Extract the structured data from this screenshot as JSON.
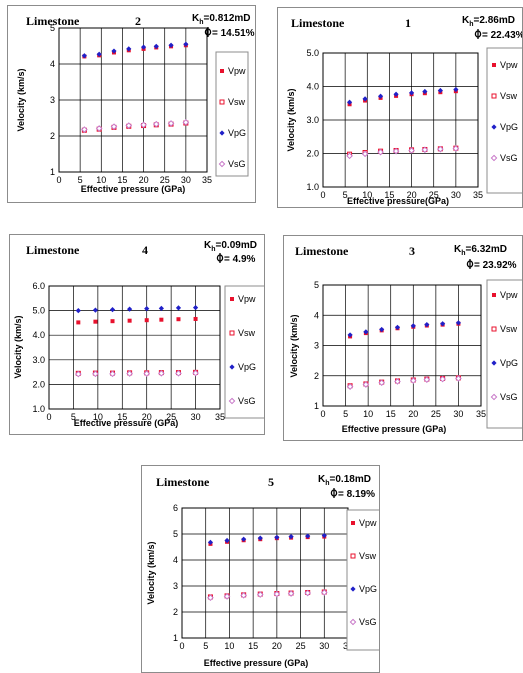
{
  "colors": {
    "Vpw": "#e8112d",
    "Vsw": "#e8112d",
    "VpG": "#2020c8",
    "VsG": "#c878c8"
  },
  "chart_data": [
    {
      "type": "scatter",
      "title": "Limestone",
      "sample_id": "2",
      "permeability": "K",
      "permeability_sub": "h",
      "permeability_value": "=0.812mD",
      "porosity": "= 14.51%",
      "xlabel": "Effective pressure (GPa)",
      "ylabel": "Velocity (km/s)",
      "xlim": [
        0,
        35
      ],
      "ylim": [
        1,
        5
      ],
      "xticks": [
        "0",
        "5",
        "10",
        "15",
        "20",
        "25",
        "30",
        "35"
      ],
      "yticks": [
        "1",
        "2",
        "3",
        "4",
        "5"
      ],
      "grid": true,
      "legend_position": "right",
      "x": [
        6,
        9.5,
        13,
        16.5,
        20,
        23,
        26.5,
        30
      ],
      "series": [
        {
          "name": "Vpw",
          "values": [
            4.21,
            4.24,
            4.32,
            4.38,
            4.42,
            4.46,
            4.49,
            4.52
          ]
        },
        {
          "name": "Vsw",
          "values": [
            2.16,
            2.19,
            2.24,
            2.27,
            2.29,
            2.31,
            2.33,
            2.36
          ]
        },
        {
          "name": "VpG",
          "values": [
            4.23,
            4.27,
            4.36,
            4.42,
            4.47,
            4.49,
            4.52,
            4.55
          ]
        },
        {
          "name": "VsG",
          "values": [
            2.18,
            2.21,
            2.26,
            2.29,
            2.31,
            2.33,
            2.35,
            2.38
          ]
        }
      ]
    },
    {
      "type": "scatter",
      "title": "Limestone",
      "sample_id": "1",
      "permeability": "K",
      "permeability_sub": "h",
      "permeability_value": "=2.86mD",
      "porosity": "= 22.43%",
      "xlabel": "Effective pressure(GPa)",
      "ylabel": "Velocity (km/s)",
      "xlim": [
        0,
        35
      ],
      "ylim": [
        1,
        5
      ],
      "xticks": [
        "0",
        "5",
        "10",
        "15",
        "20",
        "25",
        "30",
        "35"
      ],
      "yticks": [
        "1.0",
        "2.0",
        "3.0",
        "4.0",
        "5.0"
      ],
      "grid": true,
      "legend_position": "right",
      "x": [
        6,
        9.5,
        13,
        16.5,
        20,
        23,
        26.5,
        30
      ],
      "series": [
        {
          "name": "Vpw",
          "values": [
            3.47,
            3.58,
            3.66,
            3.72,
            3.77,
            3.8,
            3.83,
            3.86
          ]
        },
        {
          "name": "Vsw",
          "values": [
            1.98,
            2.03,
            2.07,
            2.09,
            2.11,
            2.12,
            2.14,
            2.16
          ]
        },
        {
          "name": "VpG",
          "values": [
            3.53,
            3.63,
            3.71,
            3.77,
            3.81,
            3.85,
            3.88,
            3.91
          ]
        },
        {
          "name": "VsG",
          "values": [
            1.93,
            1.99,
            2.04,
            2.07,
            2.09,
            2.11,
            2.13,
            2.15
          ]
        }
      ]
    },
    {
      "type": "scatter",
      "title": "Limestone",
      "sample_id": "4",
      "permeability": "K",
      "permeability_sub": "h",
      "permeability_value": "=0.09mD",
      "porosity": "= 4.9%",
      "xlabel": "Effective pressure (GPa)",
      "ylabel": "Velocity (km/s)",
      "xlim": [
        0,
        35
      ],
      "ylim": [
        1,
        6
      ],
      "xticks": [
        "0",
        "5",
        "10",
        "15",
        "20",
        "25",
        "30",
        "35"
      ],
      "yticks": [
        "1.0",
        "2.0",
        "3.0",
        "4.0",
        "5.0",
        "6.0"
      ],
      "grid": true,
      "legend_position": "right",
      "x": [
        6,
        9.5,
        13,
        16.5,
        20,
        23,
        26.5,
        30
      ],
      "series": [
        {
          "name": "Vpw",
          "values": [
            4.52,
            4.55,
            4.57,
            4.59,
            4.61,
            4.63,
            4.65,
            4.66
          ]
        },
        {
          "name": "Vsw",
          "values": [
            2.45,
            2.46,
            2.46,
            2.47,
            2.47,
            2.48,
            2.48,
            2.49
          ]
        },
        {
          "name": "VpG",
          "values": [
            5.0,
            5.02,
            5.04,
            5.06,
            5.08,
            5.09,
            5.11,
            5.12
          ]
        },
        {
          "name": "VsG",
          "values": [
            2.42,
            2.43,
            2.43,
            2.44,
            2.44,
            2.45,
            2.45,
            2.46
          ]
        }
      ]
    },
    {
      "type": "scatter",
      "title": "Limestone",
      "sample_id": "3",
      "permeability": "K",
      "permeability_sub": "h",
      "permeability_value": "=6.32mD",
      "porosity": "= 23.92%",
      "xlabel": "Effective pressure (GPa)",
      "ylabel": "Velocity (km/s)",
      "xlim": [
        0,
        35
      ],
      "ylim": [
        1,
        5
      ],
      "xticks": [
        "0",
        "5",
        "10",
        "15",
        "20",
        "25",
        "30",
        "35"
      ],
      "yticks": [
        "1",
        "2",
        "3",
        "4",
        "5"
      ],
      "grid": true,
      "legend_position": "right",
      "x": [
        6,
        9.5,
        13,
        16.5,
        20,
        23,
        26.5,
        30
      ],
      "series": [
        {
          "name": "Vpw",
          "values": [
            3.3,
            3.41,
            3.5,
            3.57,
            3.62,
            3.66,
            3.69,
            3.72
          ]
        },
        {
          "name": "Vsw",
          "values": [
            1.67,
            1.73,
            1.79,
            1.83,
            1.86,
            1.89,
            1.91,
            1.93
          ]
        },
        {
          "name": "VpG",
          "values": [
            3.35,
            3.45,
            3.53,
            3.6,
            3.65,
            3.69,
            3.72,
            3.75
          ]
        },
        {
          "name": "VsG",
          "values": [
            1.64,
            1.71,
            1.77,
            1.81,
            1.84,
            1.87,
            1.89,
            1.91
          ]
        }
      ]
    },
    {
      "type": "scatter",
      "title": "Limestone",
      "sample_id": "5",
      "permeability": "K",
      "permeability_sub": "h",
      "permeability_value": "=0.18mD",
      "porosity": "= 8.19%",
      "xlabel": "Effective pressure (GPa)",
      "ylabel": "Velocity (km/s)",
      "xlim": [
        0,
        35
      ],
      "ylim": [
        1,
        6
      ],
      "xticks": [
        "0",
        "5",
        "10",
        "15",
        "20",
        "25",
        "30",
        "35"
      ],
      "yticks": [
        "1",
        "2",
        "3",
        "4",
        "5",
        "6"
      ],
      "grid": true,
      "legend_position": "right",
      "x": [
        6,
        9.5,
        13,
        16.5,
        20,
        23,
        26.5,
        30
      ],
      "series": [
        {
          "name": "Vpw",
          "values": [
            4.62,
            4.7,
            4.76,
            4.8,
            4.84,
            4.86,
            4.88,
            4.9
          ]
        },
        {
          "name": "Vsw",
          "values": [
            2.58,
            2.62,
            2.66,
            2.69,
            2.71,
            2.73,
            2.75,
            2.77
          ]
        },
        {
          "name": "VpG",
          "values": [
            4.68,
            4.75,
            4.8,
            4.84,
            4.87,
            4.9,
            4.92,
            4.94
          ]
        },
        {
          "name": "VsG",
          "values": [
            2.55,
            2.6,
            2.64,
            2.67,
            2.69,
            2.71,
            2.73,
            2.75
          ]
        }
      ]
    }
  ]
}
